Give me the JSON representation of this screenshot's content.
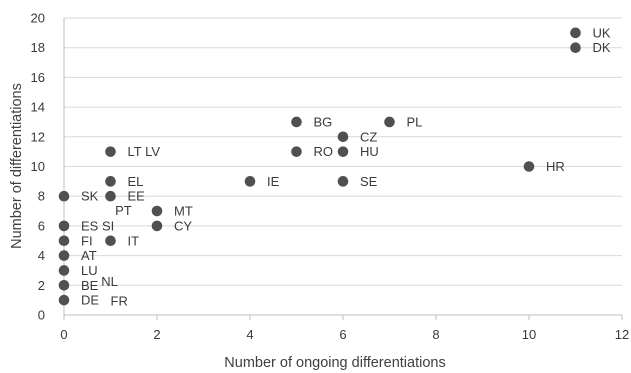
{
  "chart_data": {
    "type": "scatter",
    "xlabel": "Number of ongoing differentiations",
    "ylabel": "Number of differentiations",
    "xlim": [
      0,
      12
    ],
    "ylim": [
      0,
      20
    ],
    "xticks": [
      "0",
      "2",
      "4",
      "6",
      "8",
      "10",
      "12"
    ],
    "yticks": [
      "0",
      "2",
      "4",
      "6",
      "8",
      "10",
      "12",
      "14",
      "16",
      "18",
      "20"
    ],
    "grid": "horizontal",
    "legend": "none",
    "marker_color": "#505050",
    "points": [
      {
        "x": 11,
        "y": 19,
        "label": "UK"
      },
      {
        "x": 11,
        "y": 18,
        "label": "DK"
      },
      {
        "x": 5,
        "y": 13,
        "label": "BG"
      },
      {
        "x": 7,
        "y": 13,
        "label": "PL"
      },
      {
        "x": 6,
        "y": 12,
        "label": "CZ"
      },
      {
        "x": 1,
        "y": 11,
        "label": "LT LV"
      },
      {
        "x": 5,
        "y": 11,
        "label": "RO"
      },
      {
        "x": 6,
        "y": 11,
        "label": "HU"
      },
      {
        "x": 10,
        "y": 10,
        "label": "HR"
      },
      {
        "x": 1,
        "y": 9,
        "label": "EL"
      },
      {
        "x": 4,
        "y": 9,
        "label": "IE"
      },
      {
        "x": 6,
        "y": 9,
        "label": "SE"
      },
      {
        "x": 0,
        "y": 8,
        "label": "SK"
      },
      {
        "x": 1,
        "y": 8,
        "label": "EE"
      },
      {
        "x": 2,
        "y": 7,
        "label": "MT"
      },
      {
        "x": 0,
        "y": 6,
        "label": "ES SI"
      },
      {
        "x": 2,
        "y": 6,
        "label": "CY"
      },
      {
        "x": 0,
        "y": 5,
        "label": "FI"
      },
      {
        "x": 1,
        "y": 5,
        "label": "IT"
      },
      {
        "x": 0,
        "y": 4,
        "label": "AT"
      },
      {
        "x": 0,
        "y": 3,
        "label": "LU"
      },
      {
        "x": 0,
        "y": 2,
        "label": "BE"
      },
      {
        "x": 0,
        "y": 1,
        "label": "DE"
      }
    ],
    "annotations": [
      {
        "text": "PT",
        "x": 1.1,
        "y": 7.05
      },
      {
        "text": "NL",
        "x": 0.8,
        "y": 2.25
      },
      {
        "text": "FR",
        "x": 1.0,
        "y": 0.95
      }
    ]
  }
}
